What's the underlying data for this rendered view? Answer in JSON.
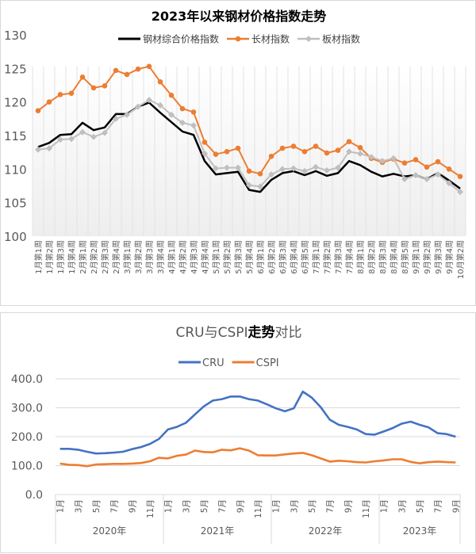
{
  "chart_data": [
    {
      "type": "line",
      "title": "2023年以来钢材价格指数走势",
      "ylim": [
        100,
        130
      ],
      "yticks": [
        100,
        105,
        110,
        115,
        120,
        125,
        130
      ],
      "grid": "vertical",
      "legend": "top",
      "categories": [
        "1月第1周",
        "1月第2周",
        "1月第3周",
        "1月第4周",
        "2月第1周",
        "2月第2周",
        "2月第3周",
        "2月第4周",
        "3月第1周",
        "3月第2周",
        "3月第3周",
        "3月第4周",
        "4月第1周",
        "4月第2周",
        "4月第3周",
        "4月第4周",
        "5月第1周",
        "5月第2周",
        "5月第3周",
        "5月第4周",
        "6月第1周",
        "6月第2周",
        "6月第3周",
        "6月第4周",
        "6月第5周",
        "7月第1周",
        "7月第2周",
        "7月第3周",
        "7月第4周",
        "8月第1周",
        "8月第2周",
        "8月第3周",
        "8月第4周",
        "8月第5周",
        "9月第1周",
        "9月第2周",
        "9月第3周",
        "9月第4周",
        "10月第2周"
      ],
      "series": [
        {
          "name": "钢材综合价格指数",
          "color": "#000000",
          "marker": "none",
          "values": [
            113.3,
            113.9,
            115.1,
            115.2,
            116.9,
            115.8,
            116.2,
            118.2,
            118.2,
            119.3,
            119.9,
            118.4,
            117.0,
            115.6,
            115.1,
            111.2,
            109.2,
            109.4,
            109.6,
            106.9,
            106.6,
            108.4,
            109.4,
            109.7,
            109.1,
            109.7,
            109.0,
            109.4,
            111.2,
            110.6,
            109.6,
            108.9,
            109.3,
            108.9,
            109.1,
            108.5,
            109.4,
            108.3,
            107.1
          ]
        },
        {
          "name": "长材指数",
          "color": "#ED7D31",
          "marker": "circle",
          "values": [
            118.7,
            120.0,
            121.1,
            121.3,
            123.7,
            122.1,
            122.4,
            124.7,
            124.1,
            124.9,
            125.3,
            123.0,
            121.0,
            119.0,
            118.5,
            114.0,
            112.2,
            112.6,
            113.1,
            109.7,
            109.3,
            111.9,
            113.1,
            113.4,
            112.6,
            113.4,
            112.4,
            112.8,
            114.1,
            113.2,
            111.6,
            111.0,
            111.5,
            110.9,
            111.4,
            110.3,
            111.1,
            110.0,
            108.9
          ]
        },
        {
          "name": "板材指数",
          "color": "#BFBFBF",
          "marker": "diamond",
          "values": [
            112.9,
            113.1,
            114.4,
            114.5,
            115.5,
            114.8,
            115.4,
            117.5,
            118.1,
            119.3,
            120.3,
            119.5,
            118.1,
            116.9,
            116.5,
            112.3,
            110.1,
            110.2,
            110.2,
            107.6,
            107.4,
            109.2,
            110.0,
            110.1,
            109.7,
            110.3,
            109.8,
            110.2,
            112.6,
            112.3,
            111.8,
            111.2,
            111.6,
            108.5,
            109.1,
            108.5,
            109.2,
            107.9,
            106.6
          ]
        }
      ]
    },
    {
      "type": "line",
      "title": "CRU与CSPI走势对比",
      "title_parts": [
        "CRU与CSPI",
        "走势",
        "对比"
      ],
      "ylim": [
        0,
        400
      ],
      "yticks": [
        "0.0",
        "100.0",
        "200.0",
        "300.0",
        "400.0"
      ],
      "grid": "horizontal",
      "legend": "top",
      "years": [
        "2020年",
        "2021年",
        "2022年",
        "2023年"
      ],
      "month_labels": [
        "1月",
        "3月",
        "5月",
        "7月",
        "9月",
        "11月"
      ],
      "last_year_months": 9,
      "series": [
        {
          "name": "CRU",
          "color": "#4472C4",
          "values": [
            158,
            158,
            155,
            148,
            142,
            143,
            145,
            148,
            157,
            164,
            175,
            192,
            225,
            234,
            248,
            277,
            305,
            325,
            330,
            339,
            339,
            330,
            325,
            312,
            298,
            288,
            298,
            356,
            335,
            302,
            259,
            241,
            234,
            225,
            209,
            207,
            218,
            230,
            245,
            252,
            241,
            232,
            212,
            209,
            200
          ]
        },
        {
          "name": "CSPI",
          "color": "#ED7D31",
          "values": [
            107,
            103,
            102,
            98,
            104,
            105,
            106,
            106,
            107,
            109,
            115,
            127,
            125,
            134,
            138,
            152,
            147,
            146,
            155,
            153,
            160,
            152,
            136,
            135,
            135,
            139,
            142,
            144,
            136,
            125,
            114,
            117,
            115,
            112,
            111,
            115,
            118,
            122,
            122,
            113,
            108,
            112,
            114,
            112,
            111
          ]
        }
      ]
    }
  ]
}
